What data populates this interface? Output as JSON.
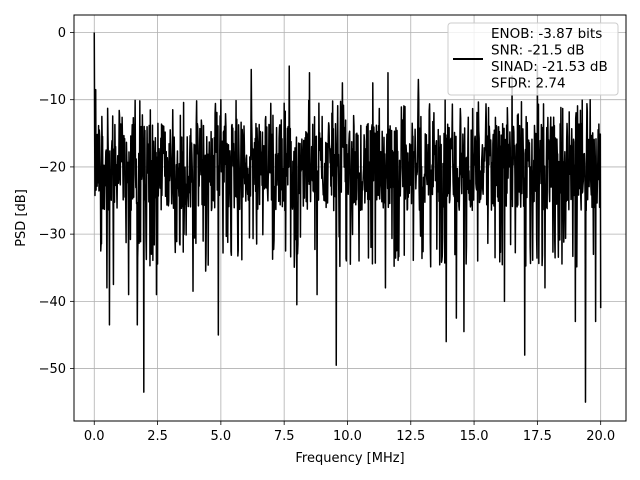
{
  "chart_data": {
    "type": "line",
    "xlabel": "Frequency [MHz]",
    "ylabel": "PSD [dB]",
    "xlim": [
      -0.8,
      21.0
    ],
    "ylim": [
      -57.8,
      2.6
    ],
    "xticks": [
      0.0,
      2.5,
      5.0,
      7.5,
      10.0,
      12.5,
      15.0,
      17.5,
      20.0
    ],
    "xtick_labels": [
      "0.0",
      "2.5",
      "5.0",
      "7.5",
      "10.0",
      "12.5",
      "15.0",
      "17.5",
      "20.0"
    ],
    "yticks": [
      0,
      -10,
      -20,
      -30,
      -40,
      -50
    ],
    "ytick_labels": [
      "0",
      "−10",
      "−20",
      "−30",
      "−40",
      "−50"
    ],
    "grid": true,
    "legend_position": "top-right",
    "series": [
      {
        "name": "ENOB: -3.87 bits\nSNR: -21.5 dB\nSINAD: -21.53 dB\nSFDR: 2.74",
        "color": "#000000",
        "x_range": [
          0.0,
          20.0
        ],
        "baseline_db": -20,
        "typical_range": [
          -30,
          -10
        ],
        "peaks": [
          {
            "x": 0.0,
            "y": 0.0
          },
          {
            "x": 0.05,
            "y": -8.5
          },
          {
            "x": 0.2,
            "y": -14.5
          },
          {
            "x": 0.3,
            "y": -12.5
          },
          {
            "x": 0.5,
            "y": -13.0
          },
          {
            "x": 1.0,
            "y": -12.5
          },
          {
            "x": 3.1,
            "y": -11.5
          },
          {
            "x": 5.0,
            "y": -10.0
          },
          {
            "x": 6.2,
            "y": -5.5
          },
          {
            "x": 7.7,
            "y": -5.0
          },
          {
            "x": 8.5,
            "y": -6.0
          },
          {
            "x": 9.8,
            "y": -7.5
          },
          {
            "x": 11.0,
            "y": -7.5
          },
          {
            "x": 11.6,
            "y": -6.0
          },
          {
            "x": 12.8,
            "y": -7.0
          },
          {
            "x": 14.6,
            "y": -7.5
          },
          {
            "x": 16.5,
            "y": -6.5
          },
          {
            "x": 17.5,
            "y": -5.0
          },
          {
            "x": 19.0,
            "y": -6.0
          },
          {
            "x": 20.0,
            "y": -7.5
          }
        ],
        "dips": [
          {
            "x": 0.25,
            "y": -32.5
          },
          {
            "x": 0.5,
            "y": -38.0
          },
          {
            "x": 0.6,
            "y": -43.5
          },
          {
            "x": 0.75,
            "y": -37.5
          },
          {
            "x": 1.35,
            "y": -39.0
          },
          {
            "x": 1.7,
            "y": -43.5
          },
          {
            "x": 1.95,
            "y": -53.5
          },
          {
            "x": 2.45,
            "y": -39.0
          },
          {
            "x": 3.9,
            "y": -38.5
          },
          {
            "x": 4.4,
            "y": -35.5
          },
          {
            "x": 4.9,
            "y": -45.0
          },
          {
            "x": 8.0,
            "y": -40.5
          },
          {
            "x": 8.8,
            "y": -39.0
          },
          {
            "x": 9.55,
            "y": -49.5
          },
          {
            "x": 11.5,
            "y": -38.0
          },
          {
            "x": 13.9,
            "y": -46.0
          },
          {
            "x": 14.3,
            "y": -42.5
          },
          {
            "x": 14.6,
            "y": -44.5
          },
          {
            "x": 16.2,
            "y": -40.0
          },
          {
            "x": 17.0,
            "y": -48.0
          },
          {
            "x": 17.8,
            "y": -38.0
          },
          {
            "x": 19.0,
            "y": -43.0
          },
          {
            "x": 19.4,
            "y": -55.0
          },
          {
            "x": 19.8,
            "y": -43.0
          },
          {
            "x": 20.0,
            "y": -41.0
          }
        ]
      }
    ]
  }
}
